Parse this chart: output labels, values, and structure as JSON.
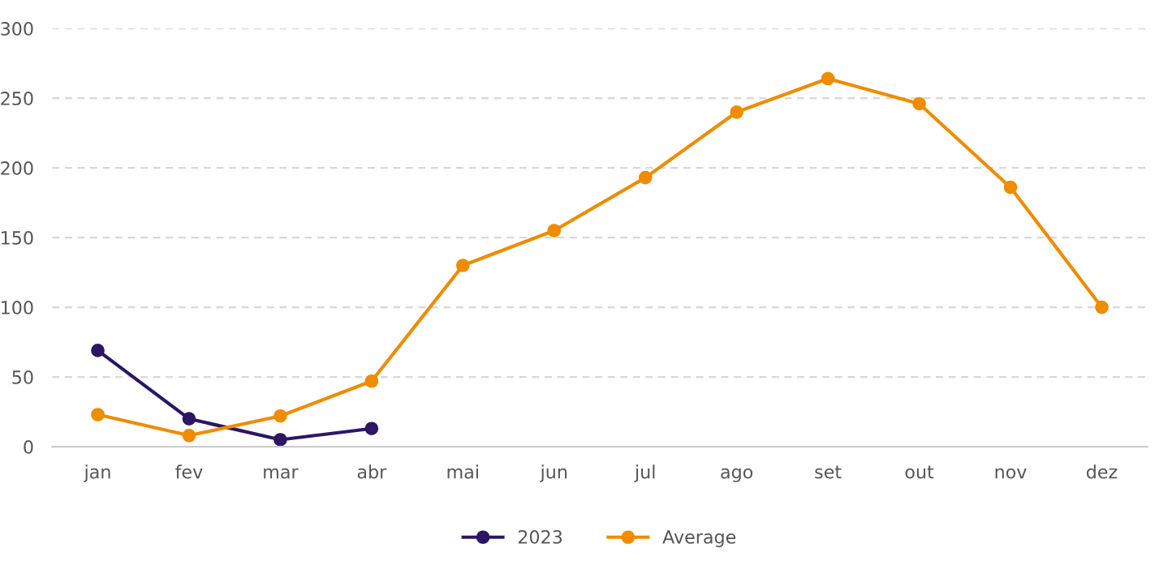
{
  "chart_data": {
    "type": "line",
    "categories": [
      "jan",
      "fev",
      "mar",
      "abr",
      "mai",
      "jun",
      "jul",
      "ago",
      "set",
      "out",
      "nov",
      "dez"
    ],
    "series": [
      {
        "name": "2023",
        "color": "#2b1764",
        "values": [
          69,
          20,
          5,
          13,
          null,
          null,
          null,
          null,
          null,
          null,
          null,
          null
        ]
      },
      {
        "name": "Average",
        "color": "#ef8c00",
        "values": [
          23,
          8,
          22,
          47,
          130,
          155,
          193,
          240,
          264,
          246,
          186,
          100
        ]
      }
    ],
    "ylim": [
      0,
      300
    ],
    "yticks": [
      0,
      50,
      100,
      150,
      200,
      250,
      300
    ],
    "grid": "y",
    "legend": "bottom",
    "marker": "circle",
    "line_style": "solid"
  }
}
